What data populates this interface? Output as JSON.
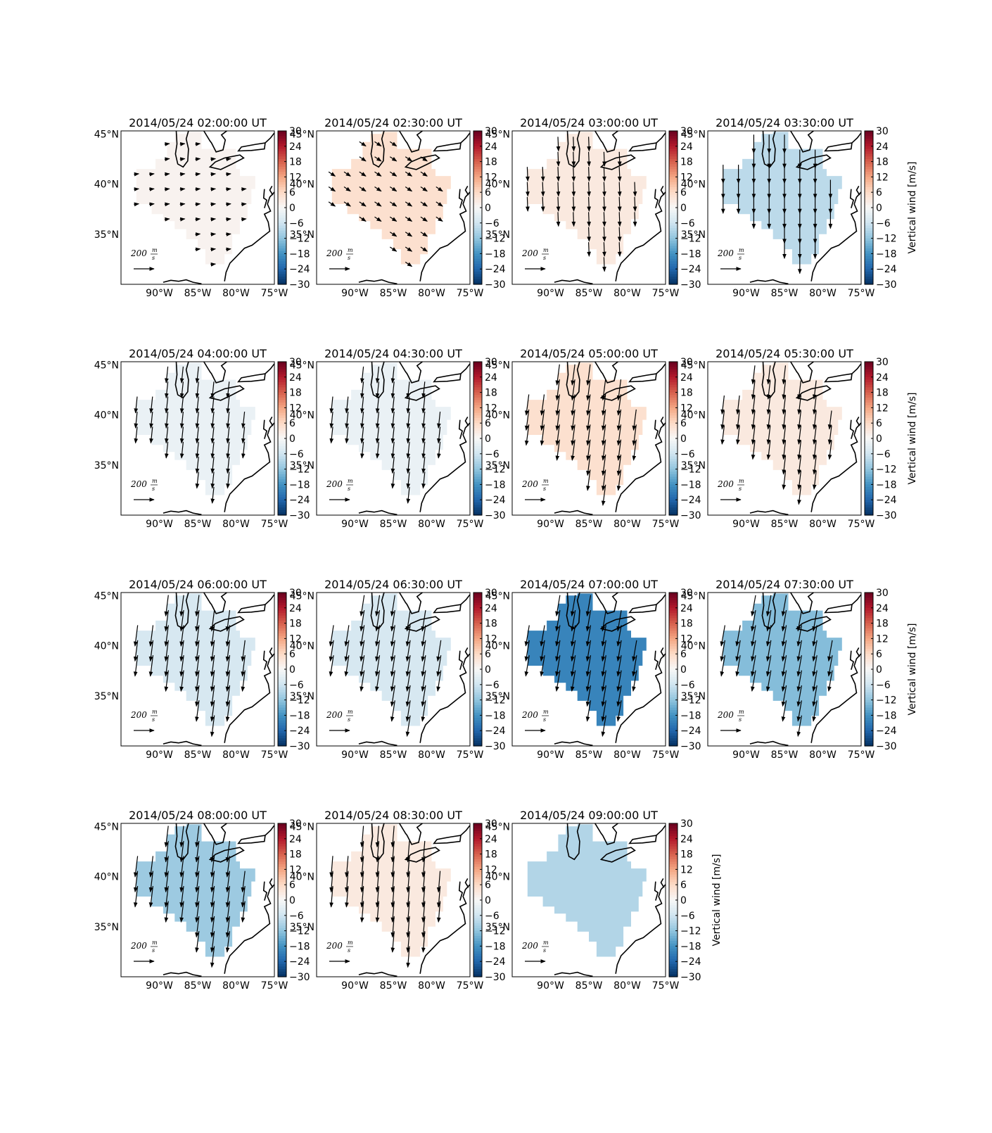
{
  "figure": {
    "colorbar_label": "Vertical wind [m/s]",
    "scale_arrow": {
      "value": "200",
      "unit_num": "m",
      "unit_den": "s"
    },
    "colormap": [
      "#053061",
      "#2166ac",
      "#4393c3",
      "#92c5de",
      "#d1e5f0",
      "#f7f7f7",
      "#fddbc7",
      "#f4a582",
      "#d6604d",
      "#b2182b",
      "#67001f"
    ]
  },
  "chart_data": [
    {
      "type": "map",
      "title": "2014/05/24 02:00:00 UT",
      "xticks": [
        "90°W",
        "85°W",
        "80°W",
        "75°W"
      ],
      "yticks": [
        "45°N",
        "40°N",
        "35°N"
      ],
      "colorbar_ticks": [
        "30",
        "24",
        "18",
        "12",
        "6",
        "0",
        "−6",
        "−12",
        "−18",
        "−24",
        "−30"
      ],
      "colorbar_range": [
        -30,
        30
      ],
      "vertical_wind": 1,
      "wind": {
        "u": 45,
        "v": 5
      },
      "colorbar_label_shown": false
    },
    {
      "type": "map",
      "title": "2014/05/24 02:30:00 UT",
      "xticks": [
        "90°W",
        "85°W",
        "80°W",
        "75°W"
      ],
      "yticks": [
        "45°N",
        "40°N",
        "35°N"
      ],
      "colorbar_ticks": [
        "30",
        "24",
        "18",
        "12",
        "6",
        "0",
        "−6",
        "−12",
        "−18",
        "−24",
        "−30"
      ],
      "colorbar_range": [
        -30,
        30
      ],
      "vertical_wind": 5,
      "wind": {
        "u": 60,
        "v": -40
      },
      "colorbar_label_shown": false
    },
    {
      "type": "map",
      "title": "2014/05/24 03:00:00 UT",
      "xticks": [
        "90°W",
        "85°W",
        "80°W",
        "75°W"
      ],
      "yticks": [
        "45°N",
        "40°N",
        "35°N"
      ],
      "colorbar_ticks": [
        "30",
        "24",
        "18",
        "12",
        "6",
        "0",
        "−6",
        "−12",
        "−18",
        "−24",
        "−30"
      ],
      "colorbar_range": [
        -30,
        30
      ],
      "vertical_wind": 3,
      "wind": {
        "u": 5,
        "v": -130
      },
      "colorbar_label_shown": false
    },
    {
      "type": "map",
      "title": "2014/05/24 03:30:00 UT",
      "xticks": [
        "90°W",
        "85°W",
        "80°W",
        "75°W"
      ],
      "yticks": [
        "45°N",
        "40°N",
        "35°N"
      ],
      "colorbar_ticks": [
        "30",
        "24",
        "18",
        "12",
        "6",
        "0",
        "−6",
        "−12",
        "−18",
        "−24",
        "−30"
      ],
      "colorbar_range": [
        -30,
        30
      ],
      "vertical_wind": -8,
      "wind": {
        "u": 0,
        "v": -170
      },
      "colorbar_label_shown": true
    },
    {
      "type": "map",
      "title": "2014/05/24 04:00:00 UT",
      "xticks": [
        "90°W",
        "85°W",
        "80°W",
        "75°W"
      ],
      "yticks": [
        "45°N",
        "40°N",
        "35°N"
      ],
      "colorbar_ticks": [
        "30",
        "24",
        "18",
        "12",
        "6",
        "0",
        "−6",
        "−12",
        "−18",
        "−24",
        "−30"
      ],
      "colorbar_range": [
        -30,
        30
      ],
      "vertical_wind": -2,
      "wind": {
        "u": -15,
        "v": -150
      },
      "colorbar_label_shown": false
    },
    {
      "type": "map",
      "title": "2014/05/24 04:30:00 UT",
      "xticks": [
        "90°W",
        "85°W",
        "80°W",
        "75°W"
      ],
      "yticks": [
        "45°N",
        "40°N",
        "35°N"
      ],
      "colorbar_ticks": [
        "30",
        "24",
        "18",
        "12",
        "6",
        "0",
        "−6",
        "−12",
        "−18",
        "−24",
        "−30"
      ],
      "colorbar_range": [
        -30,
        30
      ],
      "vertical_wind": -2,
      "wind": {
        "u": -15,
        "v": -150
      },
      "colorbar_label_shown": false
    },
    {
      "type": "map",
      "title": "2014/05/24 05:00:00 UT",
      "xticks": [
        "90°W",
        "85°W",
        "80°W",
        "75°W"
      ],
      "yticks": [
        "45°N",
        "40°N",
        "35°N"
      ],
      "colorbar_ticks": [
        "30",
        "24",
        "18",
        "12",
        "6",
        "0",
        "−6",
        "−12",
        "−18",
        "−24",
        "−30"
      ],
      "colorbar_range": [
        -30,
        30
      ],
      "vertical_wind": 5,
      "wind": {
        "u": -25,
        "v": -190
      },
      "colorbar_label_shown": false
    },
    {
      "type": "map",
      "title": "2014/05/24 05:30:00 UT",
      "xticks": [
        "90°W",
        "85°W",
        "80°W",
        "75°W"
      ],
      "yticks": [
        "45°N",
        "40°N",
        "35°N"
      ],
      "colorbar_ticks": [
        "30",
        "24",
        "18",
        "12",
        "6",
        "0",
        "−6",
        "−12",
        "−18",
        "−24",
        "−30"
      ],
      "colorbar_range": [
        -30,
        30
      ],
      "vertical_wind": 3,
      "wind": {
        "u": -20,
        "v": -170
      },
      "colorbar_label_shown": true
    },
    {
      "type": "map",
      "title": "2014/05/24 06:00:00 UT",
      "xticks": [
        "90°W",
        "85°W",
        "80°W",
        "75°W"
      ],
      "yticks": [
        "45°N",
        "40°N",
        "35°N"
      ],
      "colorbar_ticks": [
        "30",
        "24",
        "18",
        "12",
        "6",
        "0",
        "−6",
        "−12",
        "−18",
        "−24",
        "−30"
      ],
      "colorbar_range": [
        -30,
        30
      ],
      "vertical_wind": -5,
      "wind": {
        "u": -30,
        "v": -240
      },
      "colorbar_label_shown": false
    },
    {
      "type": "map",
      "title": "2014/05/24 06:30:00 UT",
      "xticks": [
        "90°W",
        "85°W",
        "80°W",
        "75°W"
      ],
      "yticks": [
        "45°N",
        "40°N",
        "35°N"
      ],
      "colorbar_ticks": [
        "30",
        "24",
        "18",
        "12",
        "6",
        "0",
        "−6",
        "−12",
        "−18",
        "−24",
        "−30"
      ],
      "colorbar_range": [
        -30,
        30
      ],
      "vertical_wind": -5,
      "wind": {
        "u": -40,
        "v": -260
      },
      "colorbar_label_shown": false
    },
    {
      "type": "map",
      "title": "2014/05/24 07:00:00 UT",
      "xticks": [
        "90°W",
        "85°W",
        "80°W",
        "75°W"
      ],
      "yticks": [
        "45°N",
        "40°N",
        "35°N"
      ],
      "colorbar_ticks": [
        "30",
        "24",
        "18",
        "12",
        "6",
        "0",
        "−6",
        "−12",
        "−18",
        "−24",
        "−30"
      ],
      "colorbar_range": [
        -30,
        30
      ],
      "vertical_wind": -20,
      "wind": {
        "u": -50,
        "v": -290
      },
      "colorbar_label_shown": false
    },
    {
      "type": "map",
      "title": "2014/05/24 07:30:00 UT",
      "xticks": [
        "90°W",
        "85°W",
        "80°W",
        "75°W"
      ],
      "yticks": [
        "45°N",
        "40°N",
        "35°N"
      ],
      "colorbar_ticks": [
        "30",
        "24",
        "18",
        "12",
        "6",
        "0",
        "−6",
        "−12",
        "−18",
        "−24",
        "−30"
      ],
      "colorbar_range": [
        -30,
        30
      ],
      "vertical_wind": -13,
      "wind": {
        "u": -50,
        "v": -280
      },
      "colorbar_label_shown": true
    },
    {
      "type": "map",
      "title": "2014/05/24 08:00:00 UT",
      "xticks": [
        "90°W",
        "85°W",
        "80°W",
        "75°W"
      ],
      "yticks": [
        "45°N",
        "40°N",
        "35°N"
      ],
      "colorbar_ticks": [
        "30",
        "24",
        "18",
        "12",
        "6",
        "0",
        "−6",
        "−12",
        "−18",
        "−24",
        "−30"
      ],
      "colorbar_range": [
        -30,
        30
      ],
      "vertical_wind": -11,
      "wind": {
        "u": -30,
        "v": -250
      },
      "colorbar_label_shown": false
    },
    {
      "type": "map",
      "title": "2014/05/24 08:30:00 UT",
      "xticks": [
        "90°W",
        "85°W",
        "80°W",
        "75°W"
      ],
      "yticks": [
        "45°N",
        "40°N",
        "35°N"
      ],
      "colorbar_ticks": [
        "30",
        "24",
        "18",
        "12",
        "6",
        "0",
        "−6",
        "−12",
        "−18",
        "−24",
        "−30"
      ],
      "colorbar_range": [
        -30,
        30
      ],
      "vertical_wind": 3,
      "wind": {
        "u": -20,
        "v": -250
      },
      "colorbar_label_shown": false
    },
    {
      "type": "map",
      "title": "2014/05/24 09:00:00 UT",
      "xticks": [
        "90°W",
        "85°W",
        "80°W",
        "75°W"
      ],
      "yticks": [
        "45°N",
        "40°N",
        "35°N"
      ],
      "colorbar_ticks": [
        "30",
        "24",
        "18",
        "12",
        "6",
        "0",
        "−6",
        "−12",
        "−18",
        "−24",
        "−30"
      ],
      "colorbar_range": [
        -30,
        30
      ],
      "vertical_wind": -9,
      "wind": {
        "u": 0,
        "v": 0
      },
      "colorbar_label_shown": true
    }
  ]
}
